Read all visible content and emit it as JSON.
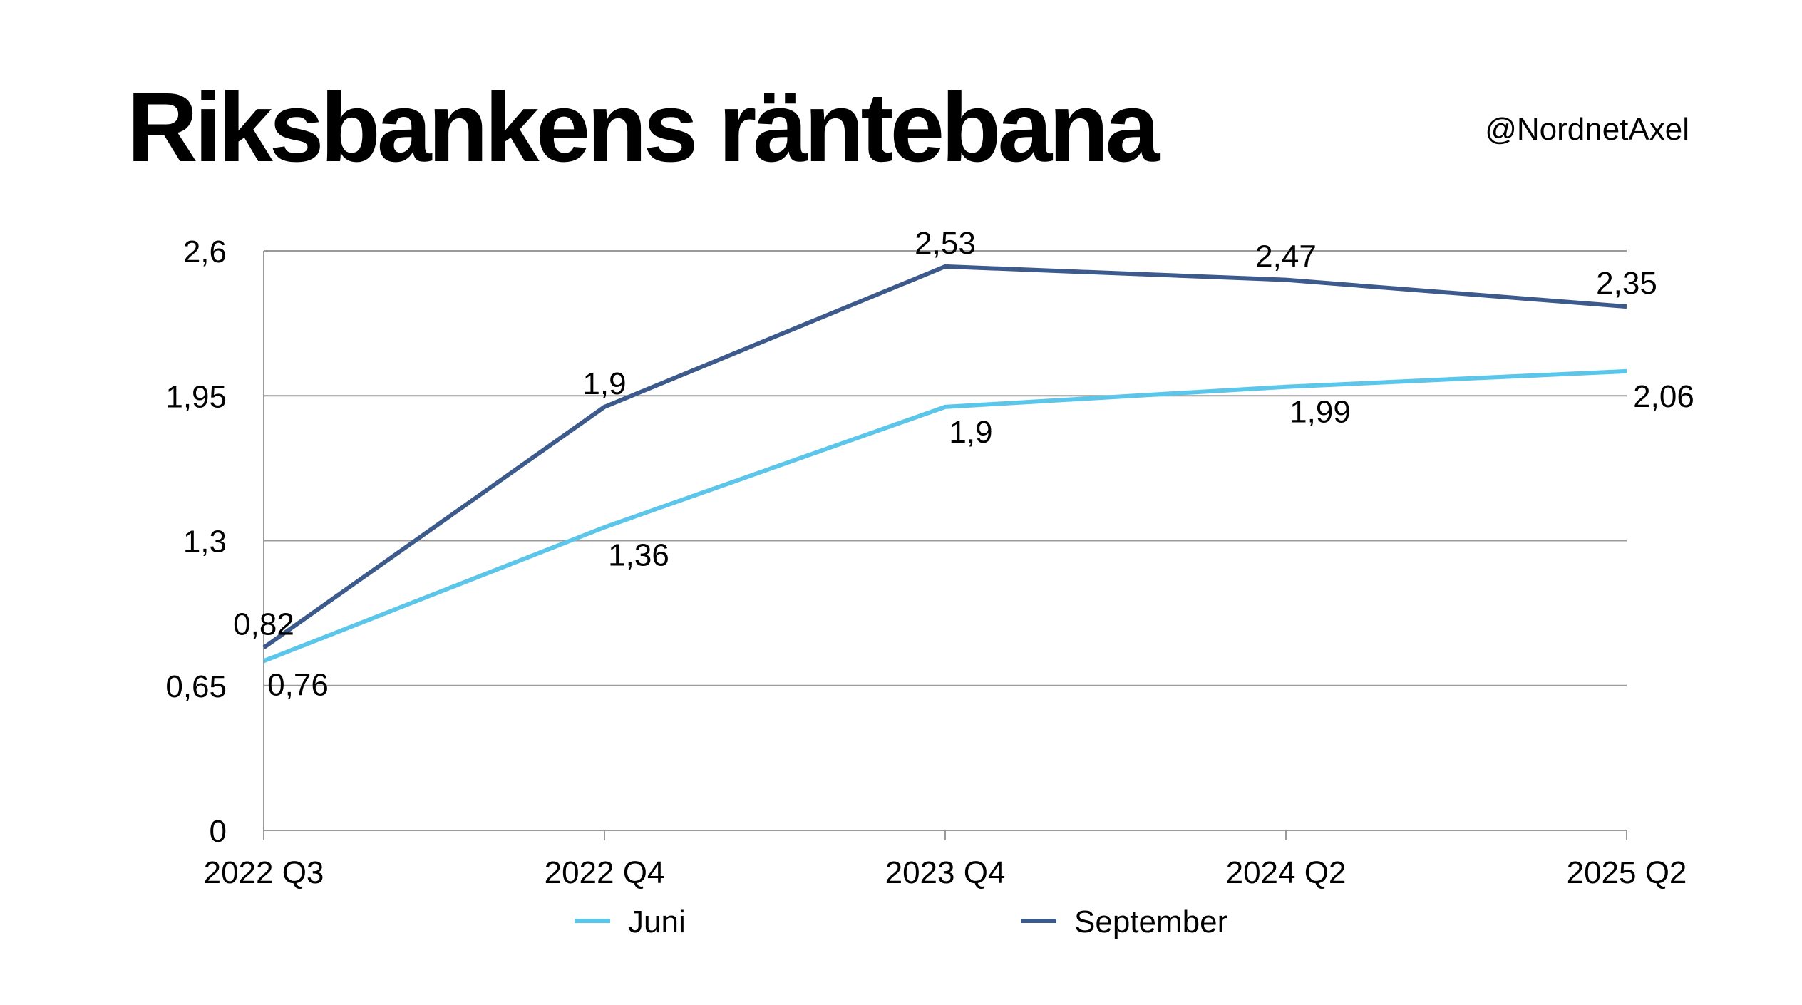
{
  "page": {
    "title": "Riksbankens räntebana",
    "handle": "@NordnetAxel"
  },
  "colors": {
    "juni": "#5bc5ea",
    "september": "#3d5a8c",
    "grid": "#9a9a9a"
  },
  "chart_data": {
    "type": "line",
    "title": "Riksbankens räntebana",
    "categories": [
      "2022 Q3",
      "2022 Q4",
      "2023 Q4",
      "2024 Q2",
      "2025 Q2"
    ],
    "yticks": [
      {
        "value": 0,
        "label": "0"
      },
      {
        "value": 0.65,
        "label": "0,65"
      },
      {
        "value": 1.3,
        "label": "1,3"
      },
      {
        "value": 1.95,
        "label": "1,95"
      },
      {
        "value": 2.6,
        "label": "2,6"
      }
    ],
    "ylim": [
      0,
      2.6
    ],
    "grid": true,
    "legend": "bottom",
    "series": [
      {
        "name": "Juni",
        "color": "#5bc5ea",
        "values": [
          0.76,
          1.36,
          1.9,
          1.99,
          2.06
        ],
        "labels": [
          "0,76",
          "1,36",
          "1,9",
          "1,99",
          "2,06"
        ]
      },
      {
        "name": "September",
        "color": "#3d5a8c",
        "values": [
          0.82,
          1.9,
          2.53,
          2.47,
          2.35
        ],
        "labels": [
          "0,82",
          "1,9",
          "2,53",
          "2,47",
          "2,35"
        ]
      }
    ]
  }
}
